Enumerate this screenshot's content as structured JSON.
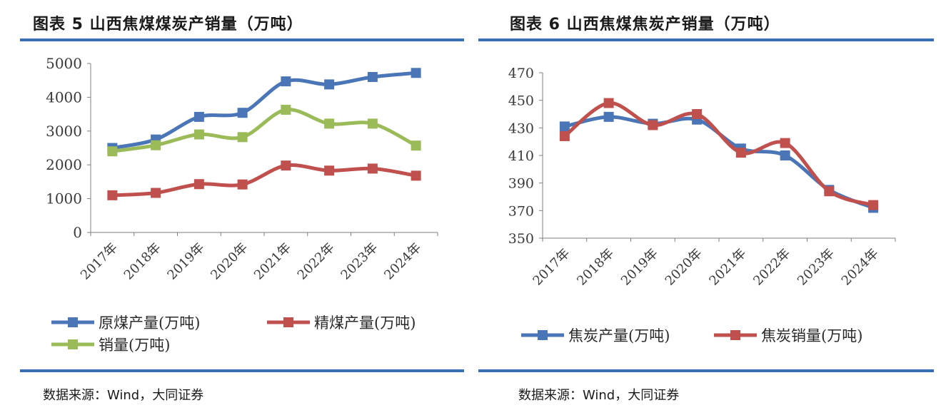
{
  "left": {
    "title": "图表 5 山西焦煤煤炭产销量（万吨）",
    "source": "数据来源：Wind，大同证券"
  },
  "right": {
    "title": "图表 6 山西焦煤焦炭产销量（万吨）",
    "source": "数据来源：Wind，大同证券"
  },
  "colors": {
    "accent_rule": "#3b6eb5",
    "blue": "#4a76b8",
    "red": "#c0504d",
    "green": "#9bbb59"
  },
  "chart_data": [
    {
      "type": "line",
      "title": "图表 5 山西焦煤煤炭产销量（万吨）",
      "categories": [
        "2017年",
        "2018年",
        "2019年",
        "2020年",
        "2021年",
        "2022年",
        "2023年",
        "2024年"
      ],
      "ylim": [
        0,
        5000
      ],
      "yticks": [
        0,
        1000,
        2000,
        3000,
        4000,
        5000
      ],
      "grid": false,
      "legend": "bottom",
      "series": [
        {
          "name": "原煤产量(万吨)",
          "color": "#4a76b8",
          "values": [
            2500,
            2750,
            3420,
            3540,
            4470,
            4380,
            4600,
            4720
          ]
        },
        {
          "name": "精煤产量(万吨)",
          "color": "#c0504d",
          "values": [
            1100,
            1170,
            1430,
            1420,
            1980,
            1830,
            1890,
            1680
          ]
        },
        {
          "name": "销量(万吨)",
          "color": "#9bbb59",
          "values": [
            2400,
            2580,
            2900,
            2820,
            3630,
            3220,
            3220,
            2570
          ]
        }
      ]
    },
    {
      "type": "line",
      "title": "图表 6 山西焦煤焦炭产销量（万吨）",
      "categories": [
        "2017年",
        "2018年",
        "2019年",
        "2020年",
        "2021年",
        "2022年",
        "2023年",
        "2024年"
      ],
      "ylim": [
        350,
        470
      ],
      "yticks": [
        350,
        370,
        390,
        410,
        430,
        450,
        470
      ],
      "grid": false,
      "legend": "bottom",
      "series": [
        {
          "name": "焦炭产量(万吨)",
          "color": "#4a76b8",
          "values": [
            431,
            438,
            433,
            436,
            415,
            410,
            385,
            372
          ]
        },
        {
          "name": "焦炭销量(万吨)",
          "color": "#c0504d",
          "values": [
            424,
            448,
            432,
            440,
            412,
            419,
            384,
            374
          ]
        }
      ]
    }
  ]
}
